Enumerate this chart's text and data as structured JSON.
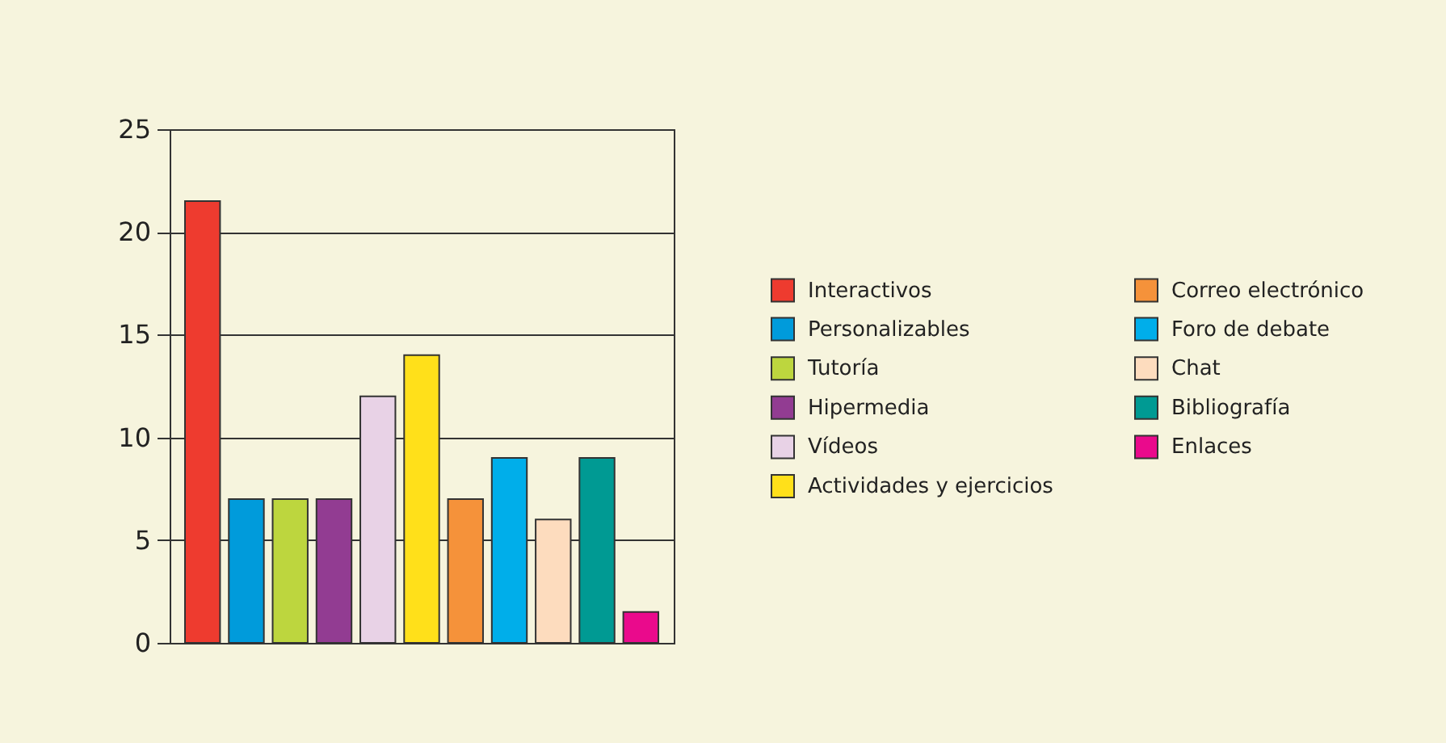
{
  "chart_data": {
    "type": "bar",
    "categories": [
      null,
      null,
      null,
      null,
      null,
      null,
      null,
      null,
      null,
      null,
      null
    ],
    "series": [
      {
        "name": "Interactivos",
        "color": "#ee3b2f",
        "values": [
          21.5,
          null,
          null,
          null,
          null,
          null,
          null,
          null,
          null,
          null,
          null
        ]
      },
      {
        "name": "Personalizables",
        "color": "#009bdb",
        "values": [
          null,
          7,
          null,
          null,
          null,
          null,
          null,
          null,
          null,
          null,
          null
        ]
      },
      {
        "name": "Tutoría",
        "color": "#bdd63e",
        "values": [
          null,
          null,
          7,
          null,
          null,
          null,
          null,
          null,
          null,
          null,
          null
        ]
      },
      {
        "name": "Hipermedia",
        "color": "#923c92",
        "values": [
          null,
          null,
          null,
          7,
          null,
          null,
          null,
          null,
          null,
          null,
          null
        ]
      },
      {
        "name": "Vídeos",
        "color": "#e8d2e6",
        "values": [
          null,
          null,
          null,
          null,
          12,
          null,
          null,
          null,
          null,
          null,
          null
        ]
      },
      {
        "name": "Actividades y ejercicios",
        "color": "#ffe01a",
        "values": [
          null,
          null,
          null,
          null,
          null,
          14,
          null,
          null,
          null,
          null,
          null
        ]
      },
      {
        "name": "Correo electrónico",
        "color": "#f5923a",
        "values": [
          null,
          null,
          null,
          null,
          null,
          null,
          7,
          null,
          null,
          null,
          null
        ]
      },
      {
        "name": "Foro de debate",
        "color": "#00aeea",
        "values": [
          null,
          null,
          null,
          null,
          null,
          null,
          null,
          9,
          null,
          null,
          null
        ]
      },
      {
        "name": "Chat",
        "color": "#fddcbe",
        "values": [
          null,
          null,
          null,
          null,
          null,
          null,
          null,
          null,
          6,
          null,
          null
        ]
      },
      {
        "name": "Bibliografía",
        "color": "#009a93",
        "values": [
          null,
          null,
          null,
          null,
          null,
          null,
          null,
          null,
          null,
          9,
          null
        ]
      },
      {
        "name": "Enlaces",
        "color": "#ea0a8c",
        "values": [
          null,
          null,
          null,
          null,
          null,
          null,
          null,
          null,
          null,
          null,
          1.5
        ]
      }
    ],
    "ylim": [
      0,
      25
    ],
    "yticks": [
      0,
      5,
      10,
      15,
      20,
      25
    ],
    "grid": "y",
    "legend": "right",
    "tick_labels": "y"
  }
}
